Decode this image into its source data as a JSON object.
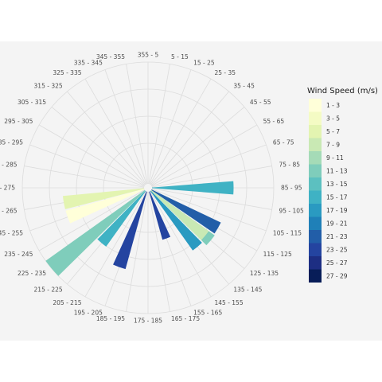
{
  "chart_data": {
    "type": "polar-bar",
    "title": "",
    "legend": {
      "title": "Wind Speed (m/s)",
      "placement": "right"
    },
    "grid": true,
    "radial_range": [
      0,
      1
    ],
    "direction_bins": [
      "355 - 5",
      "5 - 15",
      "15 - 25",
      "25 - 35",
      "35 - 45",
      "45 - 55",
      "55 - 65",
      "65 - 75",
      "75 - 85",
      "85 - 95",
      "95 - 105",
      "105 - 115",
      "115 - 125",
      "125 - 135",
      "135 - 145",
      "145 - 155",
      "155 - 165",
      "165 - 175",
      "175 - 185",
      "185 - 195",
      "195 - 205",
      "205 - 215",
      "215 - 225",
      "225 - 235",
      "235 - 245",
      "245 - 255",
      "255 - 265",
      "265 - 275",
      "275 - 285",
      "285 - 295",
      "295 - 305",
      "305 - 315",
      "315 - 325",
      "325 - 335",
      "335 - 345",
      "345 - 355"
    ],
    "speed_bins": [
      {
        "label": "1 - 3",
        "color": "#ffffd9"
      },
      {
        "label": "3 - 5",
        "color": "#f4fbc4"
      },
      {
        "label": "5 - 7",
        "color": "#e3f4b1"
      },
      {
        "label": "7 - 9",
        "color": "#c9e9b4"
      },
      {
        "label": "9 - 11",
        "color": "#a5dbb7"
      },
      {
        "label": "11 - 13",
        "color": "#7fcdbb"
      },
      {
        "label": "13 - 15",
        "color": "#5cc0c0"
      },
      {
        "label": "15 - 17",
        "color": "#3fb2c4"
      },
      {
        "label": "17 - 19",
        "color": "#2a9ac1"
      },
      {
        "label": "19 - 21",
        "color": "#1f80b8"
      },
      {
        "label": "21 - 23",
        "color": "#225ea8"
      },
      {
        "label": "23 - 25",
        "color": "#2444a0"
      },
      {
        "label": "25 - 27",
        "color": "#1d2e83"
      },
      {
        "label": "27 - 29",
        "color": "#081d58"
      }
    ],
    "bars": [
      {
        "direction": "85 - 95",
        "speed": "15 - 17",
        "value": 0.67
      },
      {
        "direction": "115 - 125",
        "speed": "21 - 23",
        "value": 0.63
      },
      {
        "direction": "125 - 135",
        "speed": "11 - 13",
        "value": 0.64
      },
      {
        "direction": "125 - 135",
        "speed": "7 - 9",
        "value": 0.58
      },
      {
        "direction": "135 - 145",
        "speed": "17 - 19",
        "value": 0.6
      },
      {
        "direction": "155 - 165",
        "speed": "23 - 25",
        "value": 0.41
      },
      {
        "direction": "195 - 205",
        "speed": "23 - 25",
        "value": 0.66
      },
      {
        "direction": "215 - 225",
        "speed": "15 - 17",
        "value": 0.56
      },
      {
        "direction": "225 - 235",
        "speed": "11 - 13",
        "value": 1.0
      },
      {
        "direction": "245 - 255",
        "speed": "1 - 3",
        "value": 0.67
      },
      {
        "direction": "255 - 265",
        "speed": "5 - 7",
        "value": 0.67
      }
    ]
  }
}
